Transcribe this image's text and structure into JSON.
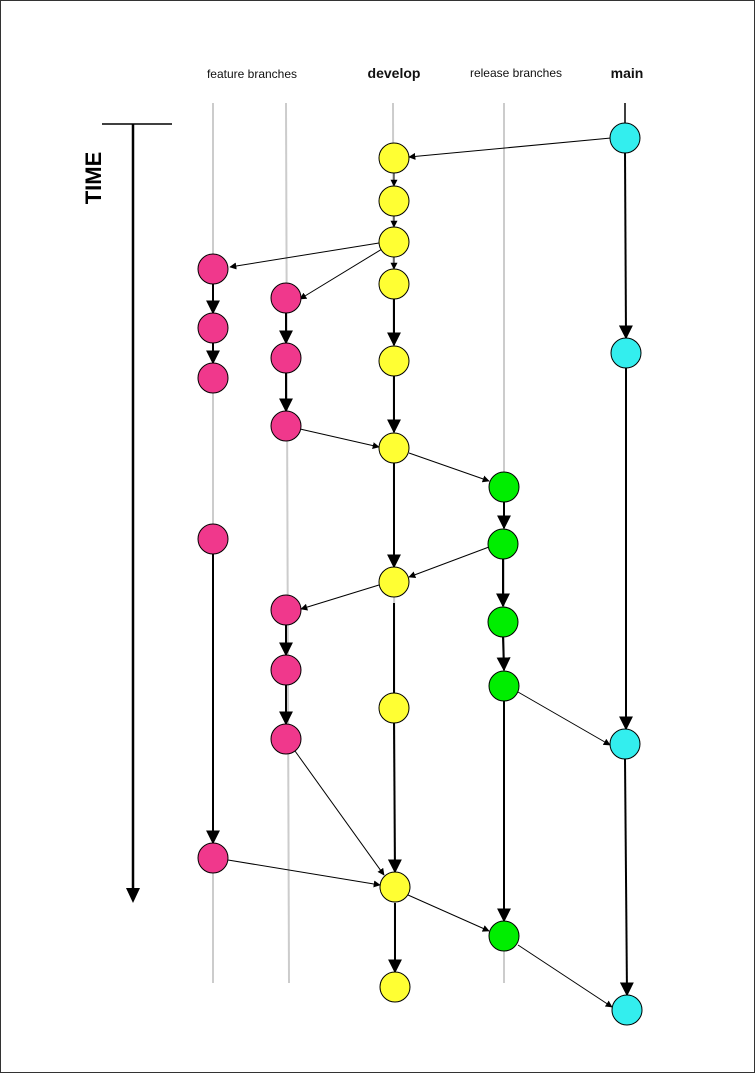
{
  "headers": {
    "feature": "feature branches",
    "develop": "develop",
    "release": "release branches",
    "main": "main"
  },
  "time_label": "TIME",
  "colors": {
    "feature": "#f0388c",
    "develop": "#ffff33",
    "release": "#00ee00",
    "main": "#33eeee",
    "lane": "#cccccc",
    "stroke": "#000000"
  }
}
